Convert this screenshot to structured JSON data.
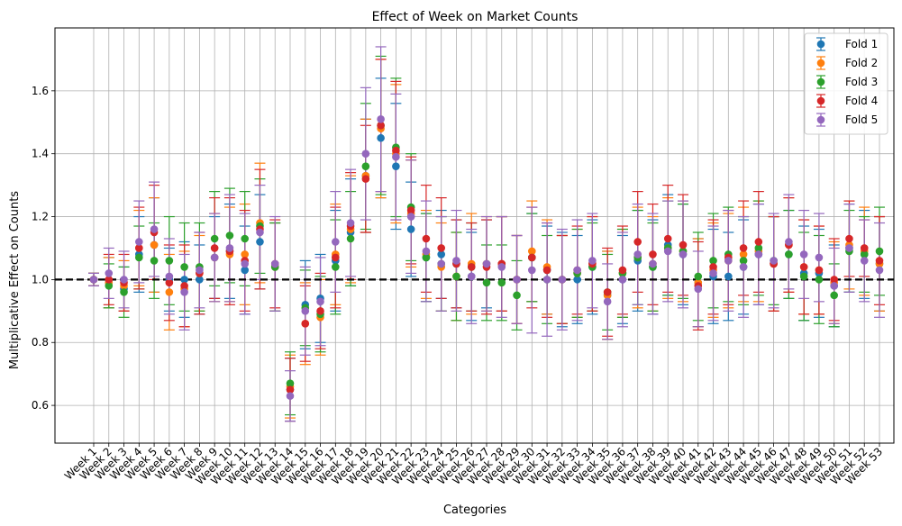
{
  "chart_data": {
    "type": "scatter",
    "title": "Effect of Week on Market Counts",
    "xlabel": "Categories",
    "ylabel": "Multiplicative Effect on Counts",
    "ylim": [
      0.48,
      1.8
    ],
    "yticks": [
      0.6,
      0.8,
      1.0,
      1.2,
      1.4,
      1.6
    ],
    "ytick_labels": [
      "0.6",
      "0.8",
      "1.0",
      "1.2",
      "1.4",
      "1.6"
    ],
    "grid": true,
    "legend_position": "top-right",
    "reference_line": {
      "y": 1.0,
      "style": "dashed",
      "color": "#000000"
    },
    "categories": [
      "Week 1",
      "Week 2",
      "Week 3",
      "Week 4",
      "Week 5",
      "Week 6",
      "Week 7",
      "Week 8",
      "Week 9",
      "Week 10",
      "Week 11",
      "Week 12",
      "Week 13",
      "Week 14",
      "Week 15",
      "Week 16",
      "Week 17",
      "Week 18",
      "Week 19",
      "Week 20",
      "Week 21",
      "Week 22",
      "Week 23",
      "Week 24",
      "Week 25",
      "Week 26",
      "Week 27",
      "Week 28",
      "Week 29",
      "Week 30",
      "Week 31",
      "Week 32",
      "Week 33",
      "Week 34",
      "Week 35",
      "Week 36",
      "Week 37",
      "Week 38",
      "Week 39",
      "Week 40",
      "Week 41",
      "Week 42",
      "Week 43",
      "Week 44",
      "Week 45",
      "Week 46",
      "Week 47",
      "Week 48",
      "Week 49",
      "Week 50",
      "Week 51",
      "Week 52",
      "Week 53"
    ],
    "series": [
      {
        "name": "Fold 1",
        "color": "#1f77b4",
        "values": [
          1.0,
          0.99,
          0.97,
          1.08,
          1.11,
          1.0,
          1.0,
          1.0,
          1.07,
          1.09,
          1.03,
          1.12,
          1.04,
          0.65,
          0.92,
          0.94,
          1.06,
          1.15,
          1.33,
          1.45,
          1.36,
          1.16,
          1.07,
          1.08,
          1.05,
          1.01,
          1.05,
          1.05,
          1.0,
          1.07,
          1.03,
          1.0,
          1.0,
          1.04,
          0.95,
          1.0,
          1.06,
          1.04,
          1.11,
          1.08,
          0.99,
          1.01,
          1.01,
          1.04,
          1.08,
          1.05,
          1.08,
          1.02,
          1.02,
          0.98,
          1.1,
          1.08,
          1.05
        ],
        "err": [
          0.02,
          0.08,
          0.07,
          0.12,
          0.15,
          0.1,
          0.12,
          0.11,
          0.13,
          0.15,
          0.14,
          0.15,
          0.14,
          0.1,
          0.14,
          0.14,
          0.16,
          0.17,
          0.18,
          0.19,
          0.2,
          0.15,
          0.14,
          0.14,
          0.14,
          0.14,
          0.14,
          0.15,
          0.14,
          0.14,
          0.14,
          0.15,
          0.14,
          0.15,
          0.14,
          0.14,
          0.16,
          0.15,
          0.16,
          0.16,
          0.14,
          0.15,
          0.14,
          0.15,
          0.16,
          0.15,
          0.14,
          0.15,
          0.14,
          0.13,
          0.14,
          0.14,
          0.15
        ]
      },
      {
        "name": "Fold 2",
        "color": "#ff7f0e",
        "values": [
          1.0,
          0.99,
          0.98,
          1.1,
          1.11,
          0.96,
          0.97,
          1.02,
          1.07,
          1.08,
          1.08,
          1.18,
          1.04,
          0.66,
          0.86,
          0.88,
          1.08,
          1.16,
          1.33,
          1.48,
          1.4,
          1.21,
          1.08,
          1.04,
          1.01,
          1.05,
          1.05,
          1.05,
          1.0,
          1.09,
          1.04,
          1.0,
          1.02,
          1.05,
          0.95,
          1.02,
          1.07,
          1.05,
          1.1,
          1.09,
          0.99,
          1.03,
          1.06,
          1.08,
          1.09,
          1.05,
          1.11,
          1.04,
          1.03,
          0.99,
          1.11,
          1.09,
          1.05
        ],
        "err": [
          0.02,
          0.08,
          0.08,
          0.12,
          0.15,
          0.12,
          0.12,
          0.12,
          0.14,
          0.15,
          0.16,
          0.19,
          0.14,
          0.1,
          0.13,
          0.12,
          0.16,
          0.17,
          0.18,
          0.22,
          0.22,
          0.17,
          0.14,
          0.14,
          0.14,
          0.16,
          0.15,
          0.15,
          0.14,
          0.16,
          0.15,
          0.14,
          0.14,
          0.15,
          0.14,
          0.14,
          0.16,
          0.15,
          0.16,
          0.16,
          0.14,
          0.15,
          0.15,
          0.15,
          0.16,
          0.15,
          0.15,
          0.15,
          0.14,
          0.13,
          0.14,
          0.14,
          0.15
        ]
      },
      {
        "name": "Fold 3",
        "color": "#2ca02c",
        "values": [
          1.0,
          0.98,
          0.96,
          1.07,
          1.06,
          1.06,
          1.04,
          1.04,
          1.13,
          1.14,
          1.13,
          1.17,
          1.04,
          0.67,
          0.91,
          0.89,
          1.04,
          1.13,
          1.36,
          1.49,
          1.42,
          1.23,
          1.07,
          1.05,
          1.01,
          1.04,
          0.99,
          0.99,
          0.95,
          1.07,
          1.0,
          1.0,
          1.02,
          1.04,
          0.96,
          1.02,
          1.07,
          1.04,
          1.1,
          1.09,
          1.01,
          1.06,
          1.08,
          1.06,
          1.1,
          1.06,
          1.08,
          1.01,
          1.0,
          0.95,
          1.09,
          1.08,
          1.09
        ],
        "err": [
          0.02,
          0.07,
          0.08,
          0.1,
          0.12,
          0.14,
          0.14,
          0.14,
          0.15,
          0.15,
          0.15,
          0.15,
          0.14,
          0.1,
          0.12,
          0.12,
          0.15,
          0.15,
          0.2,
          0.22,
          0.22,
          0.17,
          0.14,
          0.15,
          0.14,
          0.14,
          0.12,
          0.12,
          0.11,
          0.14,
          0.14,
          0.14,
          0.14,
          0.14,
          0.12,
          0.14,
          0.15,
          0.14,
          0.15,
          0.15,
          0.14,
          0.15,
          0.15,
          0.14,
          0.15,
          0.14,
          0.14,
          0.14,
          0.14,
          0.1,
          0.13,
          0.12,
          0.14
        ]
      },
      {
        "name": "Fold 4",
        "color": "#d62728",
        "values": [
          1.0,
          1.0,
          0.99,
          1.1,
          1.15,
          0.99,
          0.98,
          1.02,
          1.1,
          1.09,
          1.06,
          1.16,
          1.05,
          0.65,
          0.86,
          0.9,
          1.07,
          1.17,
          1.32,
          1.49,
          1.41,
          1.22,
          1.13,
          1.1,
          1.05,
          1.04,
          1.04,
          1.05,
          1.0,
          1.07,
          1.03,
          1.0,
          1.03,
          1.05,
          0.96,
          1.03,
          1.12,
          1.08,
          1.13,
          1.11,
          0.98,
          1.04,
          1.07,
          1.1,
          1.12,
          1.05,
          1.11,
          1.04,
          1.03,
          1.0,
          1.13,
          1.1,
          1.06
        ],
        "err": [
          0.02,
          0.08,
          0.09,
          0.13,
          0.15,
          0.12,
          0.13,
          0.13,
          0.16,
          0.17,
          0.16,
          0.19,
          0.14,
          0.1,
          0.12,
          0.12,
          0.16,
          0.17,
          0.17,
          0.21,
          0.22,
          0.17,
          0.17,
          0.16,
          0.14,
          0.14,
          0.15,
          0.15,
          0.14,
          0.16,
          0.15,
          0.14,
          0.14,
          0.15,
          0.14,
          0.14,
          0.16,
          0.16,
          0.17,
          0.16,
          0.14,
          0.15,
          0.15,
          0.15,
          0.16,
          0.15,
          0.15,
          0.15,
          0.14,
          0.13,
          0.12,
          0.09,
          0.14
        ]
      },
      {
        "name": "Fold 5",
        "color": "#9467bd",
        "values": [
          1.0,
          1.02,
          1.0,
          1.12,
          1.16,
          1.01,
          0.96,
          1.03,
          1.07,
          1.1,
          1.05,
          1.15,
          1.05,
          0.63,
          0.9,
          0.93,
          1.12,
          1.18,
          1.4,
          1.51,
          1.39,
          1.2,
          1.09,
          1.05,
          1.06,
          1.01,
          1.05,
          1.04,
          1.0,
          1.03,
          1.0,
          1.0,
          1.03,
          1.06,
          0.93,
          1.0,
          1.08,
          1.05,
          1.09,
          1.08,
          0.97,
          1.02,
          1.06,
          1.04,
          1.08,
          1.06,
          1.12,
          1.08,
          1.07,
          0.98,
          1.1,
          1.06,
          1.03
        ],
        "err": [
          0.02,
          0.08,
          0.09,
          0.13,
          0.15,
          0.12,
          0.12,
          0.12,
          0.14,
          0.17,
          0.16,
          0.15,
          0.15,
          0.08,
          0.14,
          0.14,
          0.16,
          0.17,
          0.21,
          0.23,
          0.2,
          0.18,
          0.16,
          0.15,
          0.16,
          0.15,
          0.15,
          0.16,
          0.14,
          0.2,
          0.18,
          0.16,
          0.16,
          0.15,
          0.12,
          0.15,
          0.16,
          0.16,
          0.16,
          0.17,
          0.12,
          0.15,
          0.16,
          0.16,
          0.16,
          0.15,
          0.15,
          0.14,
          0.14,
          0.12,
          0.14,
          0.13,
          0.15
        ]
      }
    ]
  }
}
